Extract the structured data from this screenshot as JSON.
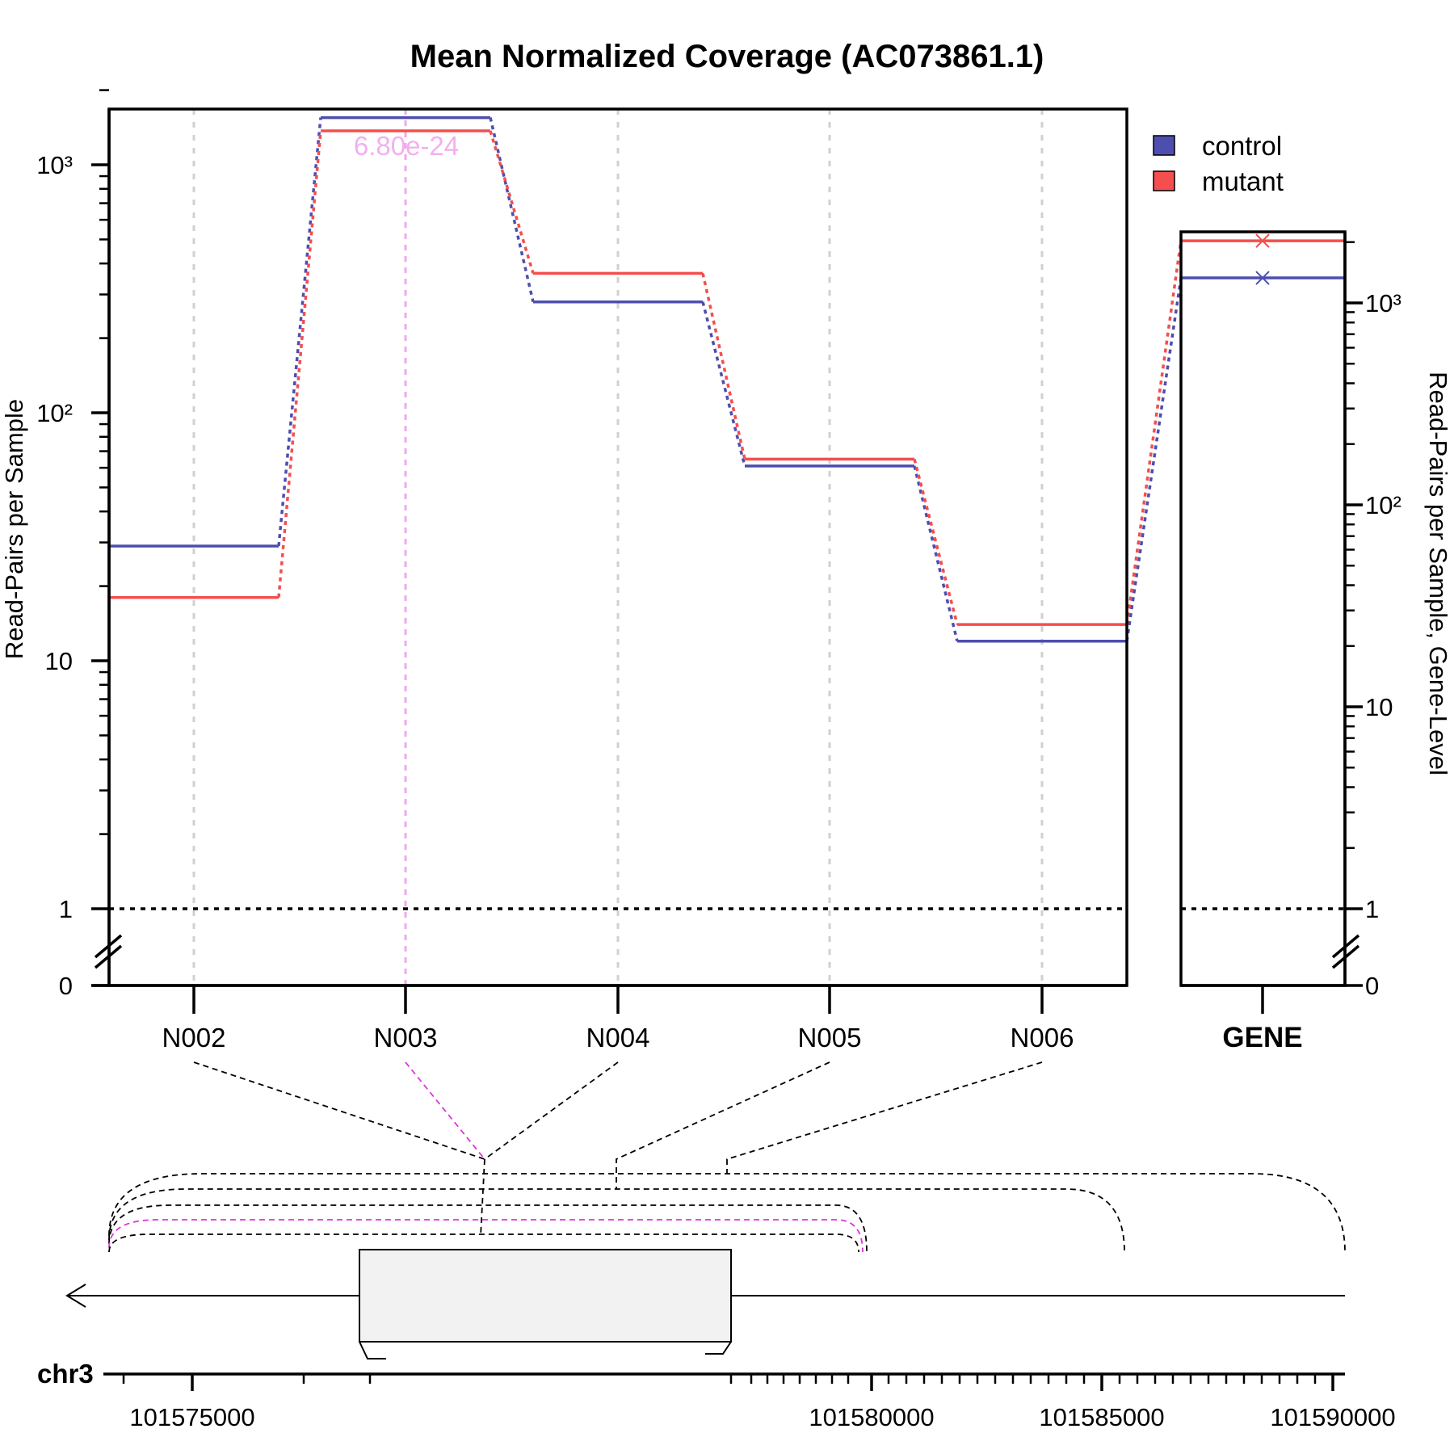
{
  "title": "Mean Normalized Coverage (AC073861.1)",
  "ylabel_left": "Read-Pairs per Sample",
  "ylabel_right": "Read-Pairs per Sample, Gene-Level",
  "colors": {
    "control": "#4E4EAE",
    "mutant": "#F44E4E",
    "highlight": "#F0A8F0",
    "highlight_line": "#DD33DD",
    "grid": "#D0D0D0"
  },
  "legend": [
    {
      "name": "control",
      "color": "#4E4EAE"
    },
    {
      "name": "mutant",
      "color": "#F44E4E"
    }
  ],
  "pvalue_label": "6.80e-24",
  "gene_label": "GENE",
  "chrom_label": "chr3",
  "genome_ticks": [
    "101575000",
    "101580000",
    "101585000",
    "101590000"
  ],
  "chart_data": {
    "type": "line",
    "y_scale": "log",
    "ylim": [
      0,
      2000
    ],
    "yticks_left": [
      "0",
      "1",
      "10",
      "10²",
      "10³"
    ],
    "yticks_right": [
      "0",
      "1",
      "10",
      "10²",
      "10³"
    ],
    "categories": [
      "N002",
      "N003",
      "N004",
      "N005",
      "N006"
    ],
    "series": [
      {
        "name": "control",
        "values": [
          29,
          1550,
          280,
          61,
          12
        ],
        "gene_level": 1330
      },
      {
        "name": "mutant",
        "values": [
          18,
          1370,
          365,
          65,
          14
        ],
        "gene_level": 2030
      }
    ],
    "highlighted": "N003",
    "gridlines": "vertical dashed at each feature",
    "legend_position": "top-right"
  }
}
